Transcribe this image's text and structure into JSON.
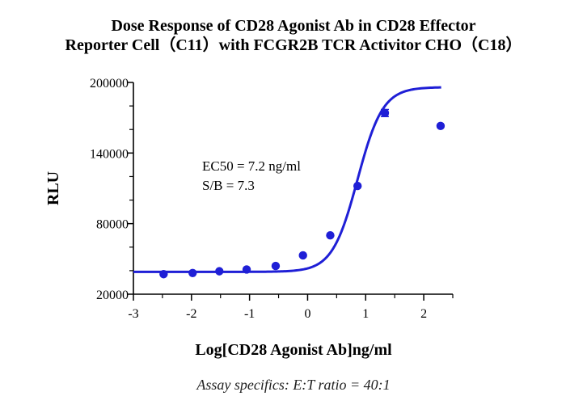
{
  "chart_data": {
    "type": "scatter",
    "title_lines": [
      "Dose Response of CD28 Agonist Ab in CD28 Effector",
      "Reporter Cell（C11）with FCGR2B TCR Activitor CHO（C18）"
    ],
    "xlabel": "Log[CD28 Agonist Ab]ng/ml",
    "ylabel": "RLU",
    "xlim": [
      -3,
      2.5
    ],
    "ylim": [
      20000,
      200000
    ],
    "x_ticks": [
      -3,
      -2,
      -1,
      0,
      1,
      2
    ],
    "x_tick_labels": [
      "-3",
      "-2",
      "-1",
      "0",
      "1",
      "2"
    ],
    "y_ticks": [
      20000,
      80000,
      140000,
      200000
    ],
    "y_tick_labels": [
      "20000",
      "80000",
      "140000",
      "200000"
    ],
    "series": [
      {
        "color": "#1f1fd6",
        "x": [
          -2.48,
          -1.98,
          -1.52,
          -1.05,
          -0.55,
          -0.08,
          0.39,
          0.86,
          1.33,
          2.29
        ],
        "y": [
          37000,
          38000,
          39500,
          41000,
          44000,
          53000,
          70000,
          112000,
          174000,
          163000
        ],
        "error": [
          0,
          0,
          0,
          0,
          0,
          0,
          0,
          0,
          3000,
          0
        ]
      }
    ],
    "fit_curve": {
      "model": "4PL",
      "bottom": 39000,
      "top": 196000,
      "log_ec50": 0.86,
      "hill_slope": 2.0,
      "color": "#1f1fd6"
    },
    "annotations": [
      "EC50 = 7.2 ng/ml",
      "S/B = 7.3"
    ],
    "grid": false,
    "legend": "none"
  },
  "footnote": "Assay specifics: E:T ratio = 40:1"
}
